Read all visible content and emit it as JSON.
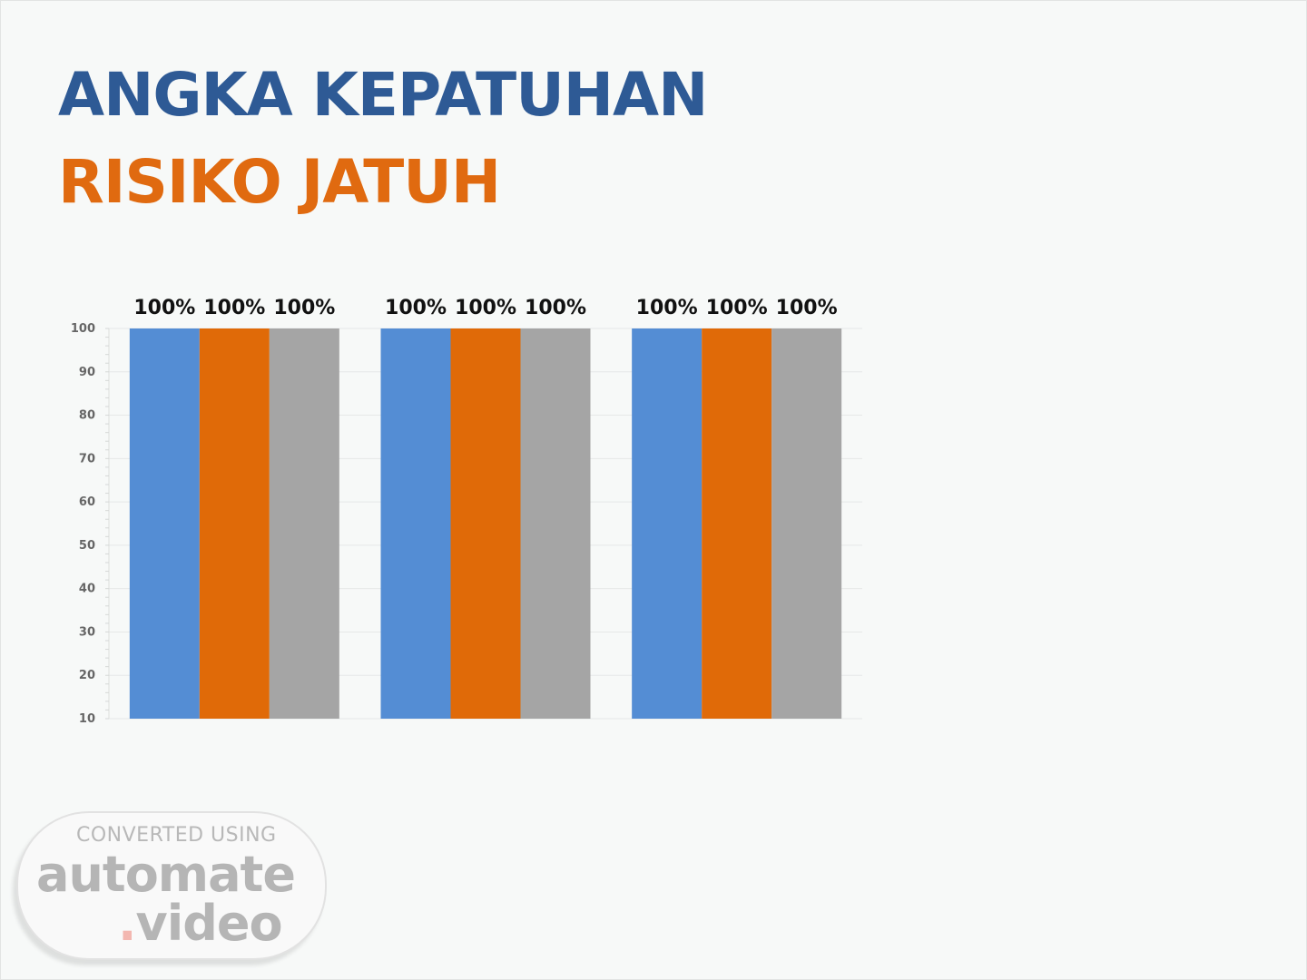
{
  "slide": {
    "title_line1": "ANGKA KEPATUHAN",
    "title_line2": "RISIKO JATUH",
    "title_line1_color": "#2e5a95",
    "title_line2_color": "#e06a10"
  },
  "chart_data": {
    "type": "bar",
    "categories": [
      "",
      "",
      ""
    ],
    "series": [
      {
        "values": [
          100,
          100,
          100
        ],
        "labels": [
          "100%",
          "100%",
          "100%"
        ],
        "color": "#548dd4"
      },
      {
        "values": [
          100,
          100,
          100
        ],
        "labels": [
          "100%",
          "100%",
          "100%"
        ],
        "color": "#e06a08"
      },
      {
        "values": [
          100,
          100,
          100
        ],
        "labels": [
          "100%",
          "100%",
          "100%"
        ],
        "color": "#a5a5a5"
      }
    ],
    "ylim": [
      10,
      100
    ],
    "yticks": [
      10,
      20,
      30,
      40,
      50,
      60,
      70,
      80,
      90,
      100
    ],
    "grid": true,
    "legend": "none"
  },
  "watermark": {
    "line1": "CONVERTED USING",
    "line2": "automate",
    "dot": ".",
    "line3": "video"
  }
}
